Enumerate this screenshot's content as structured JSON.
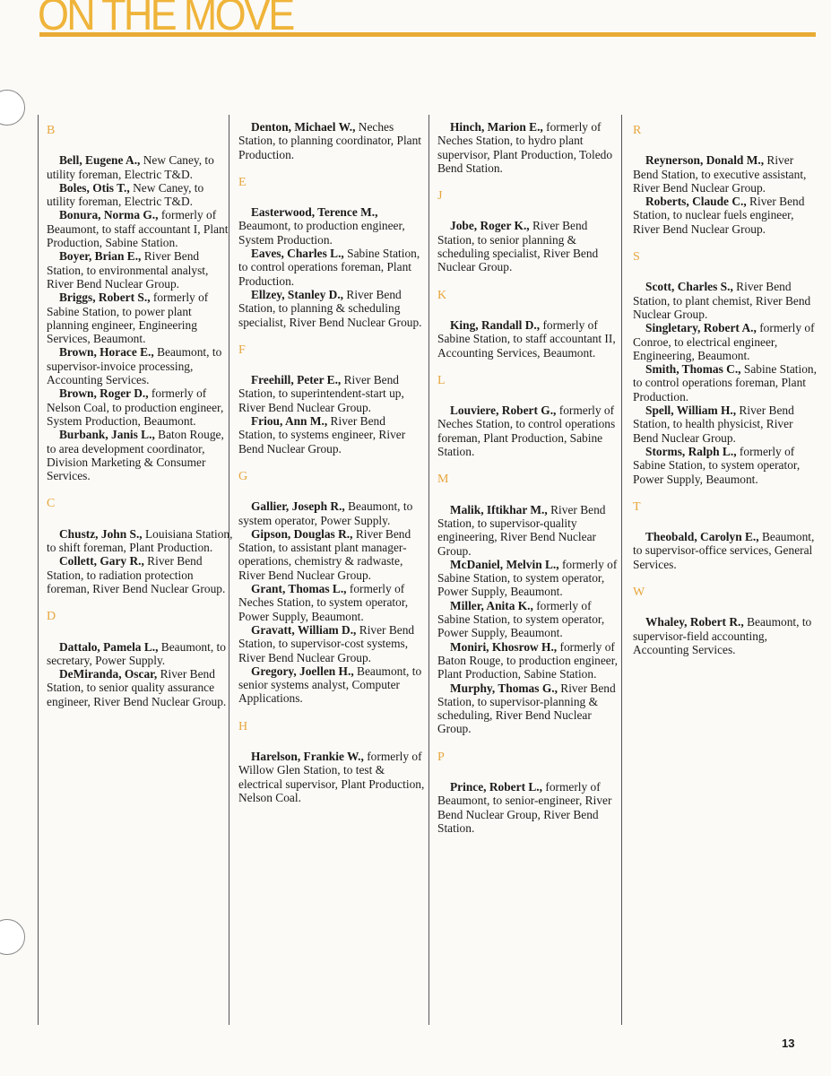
{
  "header": {
    "title": "ON THE MOVE"
  },
  "colors": {
    "accent": "#e9ab35",
    "letter": "#e7a63c"
  },
  "page_number": "13",
  "columns": [
    {
      "sections": [
        {
          "letter": "B",
          "entries": [
            {
              "name": "Bell, Eugene A.,",
              "text": " New Caney, to utility foreman, Electric T&D."
            },
            {
              "name": "Boles, Otis T.,",
              "text": " New Caney, to utility foreman, Electric T&D."
            },
            {
              "name": "Bonura, Norma G.,",
              "text": " formerly of Beaumont, to staff accountant I, Plant Production, Sabine Station."
            },
            {
              "name": "Boyer, Brian E.,",
              "text": " River Bend Station, to environmental analyst, River Bend Nuclear Group."
            },
            {
              "name": "Briggs, Robert S.,",
              "text": " formerly of Sabine Station, to power plant planning engineer, Engineering Services, Beaumont."
            },
            {
              "name": "Brown, Horace E.,",
              "text": " Beaumont, to supervisor-invoice processing, Accounting Services."
            },
            {
              "name": "Brown, Roger D.,",
              "text": " formerly of Nelson Coal, to production engineer, System Production, Beaumont."
            },
            {
              "name": "Burbank, Janis L.,",
              "text": " Baton Rouge, to area development coordinator, Division Marketing & Consumer Services."
            }
          ]
        },
        {
          "letter": "C",
          "entries": [
            {
              "name": "Chustz, John S.,",
              "text": " Louisiana Station, to shift foreman, Plant Production."
            },
            {
              "name": "Collett, Gary R.,",
              "text": " River Bend Station, to radiation protection foreman, River Bend Nuclear Group."
            }
          ]
        },
        {
          "letter": "D",
          "entries": [
            {
              "name": "Dattalo, Pamela L.,",
              "text": " Beaumont, to secretary, Power Supply."
            },
            {
              "name": "DeMiranda, Oscar,",
              "text": " River Bend Station, to senior quality assurance engineer, River Bend Nuclear Group."
            }
          ]
        }
      ]
    },
    {
      "sections": [
        {
          "letter": "",
          "entries": [
            {
              "name": "Denton, Michael W.,",
              "text": " Neches Station, to planning coordinator, Plant Production."
            }
          ]
        },
        {
          "letter": "E",
          "entries": [
            {
              "name": "Easterwood, Terence M.,",
              "text": " Beaumont, to production engineer, System Production."
            },
            {
              "name": "Eaves, Charles L.,",
              "text": " Sabine Station, to control operations foreman, Plant Production."
            },
            {
              "name": "Ellzey, Stanley D.,",
              "text": " River Bend Station, to planning & scheduling specialist, River Bend Nuclear Group."
            }
          ]
        },
        {
          "letter": "F",
          "entries": [
            {
              "name": "Freehill, Peter E.,",
              "text": " River Bend Station, to superintendent-start up, River Bend Nuclear Group."
            },
            {
              "name": "Friou, Ann M.,",
              "text": " River Bend Station, to systems engineer, River Bend Nuclear Group."
            }
          ]
        },
        {
          "letter": "G",
          "entries": [
            {
              "name": "Gallier, Joseph R.,",
              "text": " Beaumont, to system operator, Power Supply."
            },
            {
              "name": "Gipson, Douglas R.,",
              "text": " River Bend Station, to assistant plant manager-operations, chemistry & radwaste, River Bend Nuclear Group."
            },
            {
              "name": "Grant, Thomas L.,",
              "text": " formerly of Neches Station, to system operator, Power Supply, Beaumont."
            },
            {
              "name": "Gravatt, William D.,",
              "text": " River Bend Station, to supervisor-cost systems, River Bend Nuclear Group."
            },
            {
              "name": "Gregory, Joellen H.,",
              "text": " Beaumont, to senior systems analyst, Computer Applications."
            }
          ]
        },
        {
          "letter": "H",
          "entries": [
            {
              "name": "Harelson, Frankie W.,",
              "text": " formerly of Willow Glen Station, to test & electrical supervisor, Plant Production, Nelson Coal."
            }
          ]
        }
      ]
    },
    {
      "sections": [
        {
          "letter": "",
          "entries": [
            {
              "name": "Hinch, Marion E.,",
              "text": " formerly of Neches Station, to hydro plant supervisor, Plant Production, Toledo Bend Station."
            }
          ]
        },
        {
          "letter": "J",
          "entries": [
            {
              "name": "Jobe, Roger K.,",
              "text": " River Bend Station, to senior planning & scheduling specialist, River Bend Nuclear Group."
            }
          ]
        },
        {
          "letter": "K",
          "entries": [
            {
              "name": "King, Randall D.,",
              "text": " formerly of Sabine Station, to staff accountant II, Accounting Services, Beaumont."
            }
          ]
        },
        {
          "letter": "L",
          "entries": [
            {
              "name": "Louviere, Robert G.,",
              "text": " formerly of Neches Station, to control operations foreman, Plant Production, Sabine Station."
            }
          ]
        },
        {
          "letter": "M",
          "entries": [
            {
              "name": "Malik, Iftikhar M.,",
              "text": " River Bend Station, to supervisor-quality engineering, River Bend Nuclear Group."
            },
            {
              "name": "McDaniel, Melvin L.,",
              "text": " formerly of Sabine Station, to system operator, Power Supply, Beaumont."
            },
            {
              "name": "Miller, Anita K.,",
              "text": " formerly of Sabine Station, to system operator, Power Supply, Beaumont."
            },
            {
              "name": "Moniri, Khosrow H.,",
              "text": " formerly of Baton Rouge, to production engineer, Plant Production, Sabine Station."
            },
            {
              "name": "Murphy, Thomas G.,",
              "text": " River Bend Station, to supervisor-planning & scheduling, River Bend Nuclear Group."
            }
          ]
        },
        {
          "letter": "P",
          "entries": [
            {
              "name": "Prince, Robert L.,",
              "text": " formerly of Beaumont, to senior-engineer, River Bend Nuclear Group, River Bend Station."
            }
          ]
        }
      ]
    },
    {
      "sections": [
        {
          "letter": "R",
          "entries": [
            {
              "name": "Reynerson, Donald M.,",
              "text": " River Bend Station, to executive assistant, River Bend Nuclear Group."
            },
            {
              "name": "Roberts, Claude C.,",
              "text": " River Bend Station, to nuclear fuels engineer, River Bend Nuclear Group."
            }
          ]
        },
        {
          "letter": "S",
          "entries": [
            {
              "name": "Scott, Charles S.,",
              "text": " River Bend Station, to plant chemist, River Bend Nuclear Group."
            },
            {
              "name": "Singletary, Robert A.,",
              "text": " formerly of Conroe, to electrical engineer, Engineering, Beaumont."
            },
            {
              "name": "Smith, Thomas C.,",
              "text": " Sabine Station, to control operations foreman, Plant Production."
            },
            {
              "name": "Spell, William H.,",
              "text": " River Bend Station, to health physicist, River Bend Nuclear Group."
            },
            {
              "name": "Storms, Ralph L.,",
              "text": " formerly of Sabine Station, to system operator, Power Supply, Beaumont."
            }
          ]
        },
        {
          "letter": "T",
          "entries": [
            {
              "name": "Theobald, Carolyn E.,",
              "text": " Beaumont, to supervisor-office services, General Services."
            }
          ]
        },
        {
          "letter": "W",
          "entries": [
            {
              "name": "Whaley, Robert R.,",
              "text": " Beaumont, to supervisor-field accounting, Accounting Services."
            }
          ]
        }
      ]
    }
  ]
}
